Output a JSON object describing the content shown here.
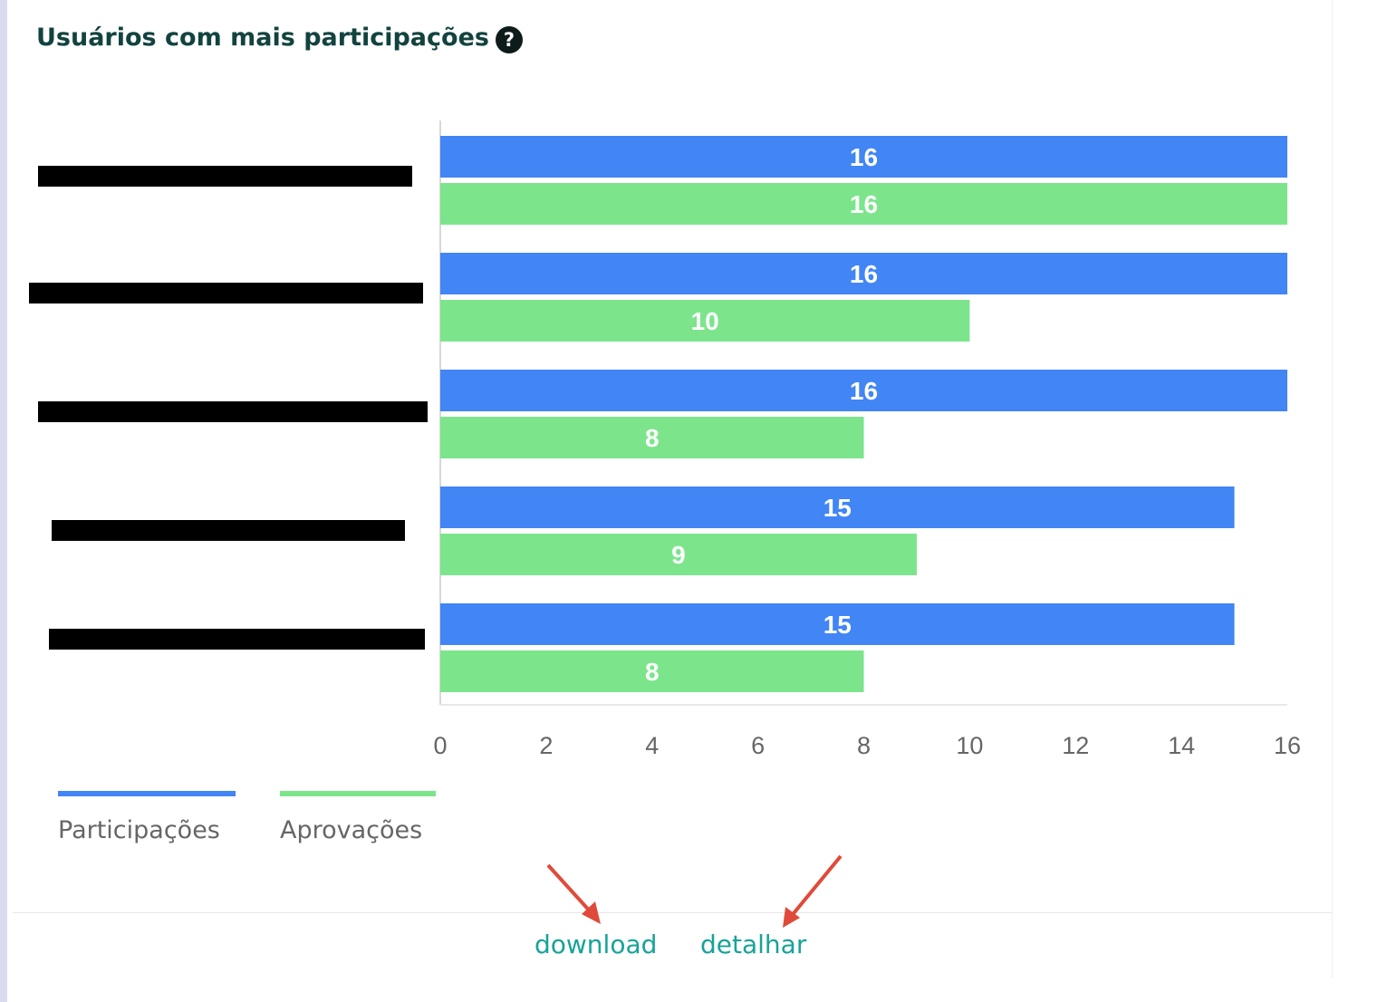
{
  "card": {
    "title": "Usuários com mais participações",
    "help_icon": "question-circle-icon"
  },
  "chart_data": {
    "type": "bar",
    "orientation": "horizontal",
    "categories": [
      "",
      "",
      "",
      "",
      ""
    ],
    "series": [
      {
        "name": "Participações",
        "values": [
          16,
          16,
          16,
          15,
          15
        ],
        "color": "#4285f4"
      },
      {
        "name": "Aprovações",
        "values": [
          16,
          10,
          8,
          9,
          8
        ],
        "color": "#7ce58c"
      }
    ],
    "xlim": [
      0,
      16
    ],
    "xticks": [
      "0",
      "2",
      "4",
      "6",
      "8",
      "10",
      "12",
      "14",
      "16"
    ],
    "data_labels": true,
    "grid": false,
    "legend_position": "bottom-left",
    "category_labels_redacted": true
  },
  "legend": {
    "items": [
      {
        "label": "Participações",
        "color": "#4285f4"
      },
      {
        "label": "Aprovações",
        "color": "#7ce58c"
      }
    ]
  },
  "footer": {
    "download_label": "download",
    "detail_label": "detalhar"
  },
  "colors": {
    "title": "#12433f",
    "link": "#17a398",
    "annotation_arrow": "#e04a3a",
    "redaction": "#000000"
  }
}
